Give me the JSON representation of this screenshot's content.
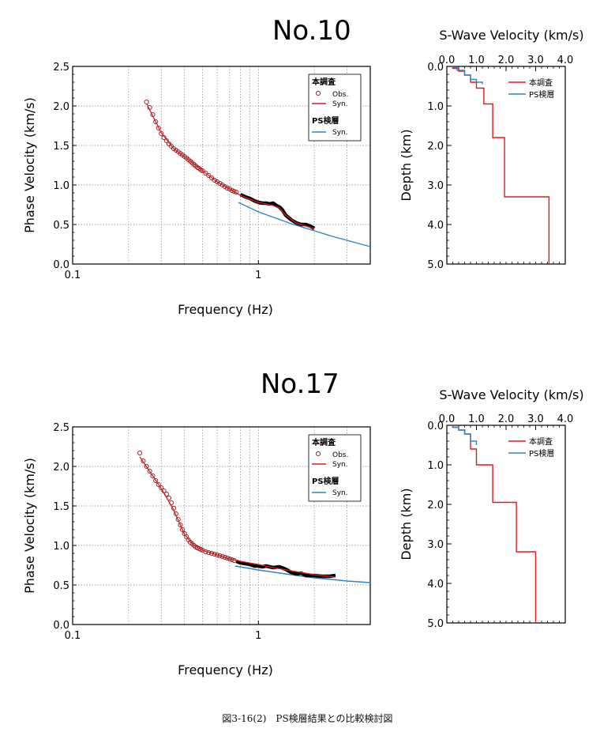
{
  "caption": "図3-16(2)　PS検層結果との比較検討図",
  "colors": {
    "this_study": "#e0191e",
    "ps_logging": "#2b86c5",
    "obs_marker": "#8b1a1a",
    "grid": "#888888"
  },
  "panels": [
    {
      "station": "No.10",
      "dispersion": {
        "type": "line",
        "xlabel": "Frequency (Hz)",
        "ylabel": "Phase Velocity (km/s)",
        "x_scale": "log",
        "xlim": [
          0.1,
          4.0
        ],
        "ylim": [
          0.0,
          2.5
        ],
        "x_ticks": [
          "0.1",
          "1"
        ],
        "y_ticks": [
          "0.0",
          "0.5",
          "1.0",
          "1.5",
          "2.0",
          "2.5"
        ],
        "grid": true,
        "legend_position": "top-right",
        "legend": {
          "group1": "本調査",
          "obs": "Obs.",
          "syn": "Syn.",
          "group2": "PS検層",
          "syn2": "Syn."
        },
        "series": [
          {
            "name": "Obs.",
            "marker": "circle",
            "x": [
              0.25,
              0.26,
              0.27,
              0.28,
              0.29,
              0.3,
              0.31,
              0.32,
              0.33,
              0.34,
              0.35,
              0.36,
              0.37,
              0.38,
              0.39,
              0.4,
              0.41,
              0.42,
              0.43,
              0.44,
              0.45,
              0.46,
              0.47,
              0.48,
              0.49,
              0.5,
              0.52,
              0.54,
              0.56,
              0.58,
              0.6,
              0.62,
              0.64,
              0.66,
              0.68,
              0.7,
              0.72,
              0.74,
              0.76
            ],
            "y": [
              2.05,
              1.98,
              1.89,
              1.8,
              1.72,
              1.65,
              1.6,
              1.56,
              1.52,
              1.49,
              1.46,
              1.44,
              1.42,
              1.4,
              1.38,
              1.36,
              1.34,
              1.32,
              1.3,
              1.28,
              1.26,
              1.24,
              1.22,
              1.21,
              1.19,
              1.18,
              1.15,
              1.12,
              1.09,
              1.06,
              1.04,
              1.02,
              1.0,
              0.98,
              0.96,
              0.95,
              0.93,
              0.92,
              0.91
            ]
          },
          {
            "name": "Syn.",
            "x": [
              0.25,
              0.3,
              0.35,
              0.4,
              0.5,
              0.6,
              0.7,
              0.8,
              0.9,
              1.0,
              1.1,
              1.2,
              1.3,
              1.4,
              1.6,
              1.8,
              2.0
            ],
            "y": [
              2.03,
              1.66,
              1.46,
              1.36,
              1.18,
              1.04,
              0.95,
              0.87,
              0.82,
              0.78,
              0.76,
              0.74,
              0.71,
              0.62,
              0.52,
              0.48,
              0.45
            ]
          },
          {
            "name": "Obs. (dense)",
            "x": [
              0.8,
              0.85,
              0.9,
              0.95,
              1.0,
              1.05,
              1.1,
              1.15,
              1.2,
              1.25,
              1.3,
              1.35,
              1.4,
              1.5,
              1.6,
              1.7,
              1.8,
              1.9,
              2.0
            ],
            "y": [
              0.88,
              0.85,
              0.83,
              0.8,
              0.78,
              0.77,
              0.77,
              0.76,
              0.77,
              0.74,
              0.72,
              0.68,
              0.62,
              0.56,
              0.52,
              0.5,
              0.5,
              0.48,
              0.45
            ]
          },
          {
            "name": "PS検層 Syn.",
            "x": [
              0.78,
              1.0,
              1.5,
              2.0,
              2.5,
              3.0,
              4.0
            ],
            "y": [
              0.78,
              0.66,
              0.51,
              0.42,
              0.35,
              0.3,
              0.22
            ]
          }
        ]
      },
      "velocity_profile": {
        "type": "line",
        "title": "S-Wave Velocity (km/s)",
        "ylabel": "Depth (km)",
        "xlim": [
          0.0,
          4.0
        ],
        "ylim": [
          0.0,
          5.0
        ],
        "x_ticks": [
          "0.0",
          "1.0",
          "2.0",
          "3.0",
          "4.0"
        ],
        "y_ticks": [
          "0.0",
          "1.0",
          "2.0",
          "3.0",
          "4.0",
          "5.0"
        ],
        "legend_position": "top-right",
        "legend": [
          "本調査",
          "PS検層"
        ],
        "series": [
          {
            "name": "本調査",
            "v": [
              0.2,
              0.4,
              0.6,
              0.8,
              1.0,
              1.25,
              1.55,
              1.95,
              3.45
            ],
            "depth_top": [
              0,
              0.05,
              0.12,
              0.22,
              0.4,
              0.55,
              0.95,
              1.8,
              3.3
            ],
            "depth_bottom": 5.0
          },
          {
            "name": "PS検層",
            "v": [
              0.2,
              0.35,
              0.6,
              0.8,
              1.0,
              1.2
            ],
            "depth_top": [
              0,
              0.03,
              0.1,
              0.22,
              0.33,
              0.4
            ],
            "depth_bottom": 0.45
          }
        ]
      }
    },
    {
      "station": "No.17",
      "dispersion": {
        "type": "line",
        "xlabel": "Frequency (Hz)",
        "ylabel": "Phase Velocity (km/s)",
        "x_scale": "log",
        "xlim": [
          0.1,
          4.0
        ],
        "ylim": [
          0.0,
          2.5
        ],
        "x_ticks": [
          "0.1",
          "1"
        ],
        "y_ticks": [
          "0.0",
          "0.5",
          "1.0",
          "1.5",
          "2.0",
          "2.5"
        ],
        "grid": true,
        "legend_position": "top-right",
        "legend": {
          "group1": "本調査",
          "obs": "Obs.",
          "syn": "Syn.",
          "group2": "PS検層",
          "syn2": "Syn."
        },
        "series": [
          {
            "name": "Obs.",
            "marker": "circle",
            "x": [
              0.23,
              0.24,
              0.25,
              0.26,
              0.27,
              0.28,
              0.29,
              0.3,
              0.31,
              0.32,
              0.33,
              0.34,
              0.35,
              0.36,
              0.37,
              0.38,
              0.39,
              0.4,
              0.41,
              0.42,
              0.43,
              0.44,
              0.45,
              0.46,
              0.47,
              0.48,
              0.49,
              0.5,
              0.52,
              0.54,
              0.56,
              0.58,
              0.6,
              0.62,
              0.64,
              0.66,
              0.68,
              0.7,
              0.72,
              0.74
            ],
            "y": [
              2.17,
              2.07,
              2.0,
              1.94,
              1.88,
              1.82,
              1.77,
              1.73,
              1.69,
              1.65,
              1.6,
              1.54,
              1.47,
              1.4,
              1.33,
              1.26,
              1.2,
              1.15,
              1.11,
              1.07,
              1.04,
              1.02,
              1.0,
              0.98,
              0.97,
              0.96,
              0.95,
              0.94,
              0.92,
              0.91,
              0.9,
              0.89,
              0.88,
              0.87,
              0.86,
              0.85,
              0.84,
              0.83,
              0.82,
              0.81
            ]
          },
          {
            "name": "Syn.",
            "x": [
              0.23,
              0.3,
              0.35,
              0.4,
              0.45,
              0.5,
              0.6,
              0.7,
              0.8,
              1.0,
              1.2,
              1.5,
              2.0,
              2.6
            ],
            "y": [
              2.12,
              1.72,
              1.45,
              1.14,
              1.0,
              0.94,
              0.88,
              0.83,
              0.8,
              0.76,
              0.72,
              0.68,
              0.63,
              0.6
            ]
          },
          {
            "name": "Obs. (dense)",
            "x": [
              0.76,
              0.8,
              0.85,
              0.9,
              0.95,
              1.0,
              1.05,
              1.1,
              1.15,
              1.2,
              1.3,
              1.4,
              1.5,
              1.6,
              1.7,
              1.8,
              2.0,
              2.2,
              2.4,
              2.6
            ],
            "y": [
              0.8,
              0.78,
              0.77,
              0.76,
              0.74,
              0.74,
              0.73,
              0.74,
              0.73,
              0.72,
              0.73,
              0.7,
              0.66,
              0.64,
              0.65,
              0.62,
              0.62,
              0.61,
              0.61,
              0.62
            ]
          },
          {
            "name": "PS検層 Syn.",
            "x": [
              0.75,
              1.0,
              1.5,
              2.0,
              2.5,
              3.0,
              4.0
            ],
            "y": [
              0.74,
              0.69,
              0.63,
              0.59,
              0.57,
              0.55,
              0.53
            ]
          }
        ]
      },
      "velocity_profile": {
        "type": "line",
        "title": "S-Wave Velocity (km/s)",
        "ylabel": "Depth (km)",
        "xlim": [
          0.0,
          4.0
        ],
        "ylim": [
          0.0,
          5.0
        ],
        "x_ticks": [
          "0.0",
          "1.0",
          "2.0",
          "3.0",
          "4.0"
        ],
        "y_ticks": [
          "0.0",
          "1.0",
          "2.0",
          "3.0",
          "4.0",
          "5.0"
        ],
        "legend_position": "top-right",
        "legend": [
          "本調査",
          "PS検層"
        ],
        "series": [
          {
            "name": "本調査",
            "v": [
              0.2,
              0.4,
              0.6,
              0.8,
              1.0,
              1.55,
              2.35,
              3.0
            ],
            "depth_top": [
              0,
              0.05,
              0.12,
              0.22,
              0.6,
              1.0,
              1.95,
              3.2
            ],
            "depth_bottom": 5.0
          },
          {
            "name": "PS検層",
            "v": [
              0.2,
              0.4,
              0.6,
              0.8,
              1.0
            ],
            "depth_top": [
              0,
              0.05,
              0.12,
              0.22,
              0.4
            ],
            "depth_bottom": 0.5
          }
        ]
      }
    }
  ]
}
